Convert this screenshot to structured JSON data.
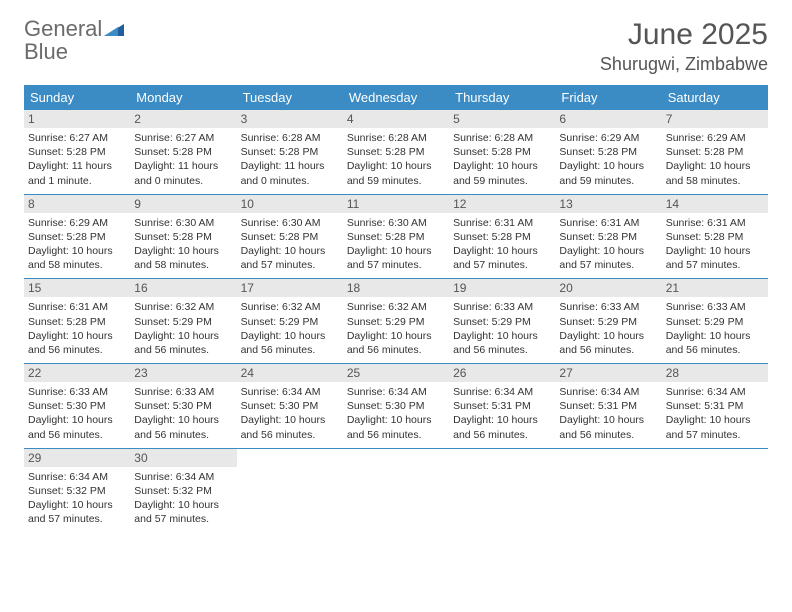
{
  "brand": {
    "word1": "General",
    "word2": "Blue"
  },
  "title": "June 2025",
  "location": "Shurugwi, Zimbabwe",
  "colors": {
    "header_bg": "#3b8bc4",
    "header_text": "#ffffff",
    "daynum_bg": "#e8e8e8",
    "week_border": "#3b8bc4",
    "logo_gray": "#6b6b6b",
    "logo_blue": "#3b8bc4"
  },
  "day_headers": [
    "Sunday",
    "Monday",
    "Tuesday",
    "Wednesday",
    "Thursday",
    "Friday",
    "Saturday"
  ],
  "weeks": [
    [
      {
        "n": "1",
        "sr": "6:27 AM",
        "ss": "5:28 PM",
        "dl": "11 hours and 1 minute."
      },
      {
        "n": "2",
        "sr": "6:27 AM",
        "ss": "5:28 PM",
        "dl": "11 hours and 0 minutes."
      },
      {
        "n": "3",
        "sr": "6:28 AM",
        "ss": "5:28 PM",
        "dl": "11 hours and 0 minutes."
      },
      {
        "n": "4",
        "sr": "6:28 AM",
        "ss": "5:28 PM",
        "dl": "10 hours and 59 minutes."
      },
      {
        "n": "5",
        "sr": "6:28 AM",
        "ss": "5:28 PM",
        "dl": "10 hours and 59 minutes."
      },
      {
        "n": "6",
        "sr": "6:29 AM",
        "ss": "5:28 PM",
        "dl": "10 hours and 59 minutes."
      },
      {
        "n": "7",
        "sr": "6:29 AM",
        "ss": "5:28 PM",
        "dl": "10 hours and 58 minutes."
      }
    ],
    [
      {
        "n": "8",
        "sr": "6:29 AM",
        "ss": "5:28 PM",
        "dl": "10 hours and 58 minutes."
      },
      {
        "n": "9",
        "sr": "6:30 AM",
        "ss": "5:28 PM",
        "dl": "10 hours and 58 minutes."
      },
      {
        "n": "10",
        "sr": "6:30 AM",
        "ss": "5:28 PM",
        "dl": "10 hours and 57 minutes."
      },
      {
        "n": "11",
        "sr": "6:30 AM",
        "ss": "5:28 PM",
        "dl": "10 hours and 57 minutes."
      },
      {
        "n": "12",
        "sr": "6:31 AM",
        "ss": "5:28 PM",
        "dl": "10 hours and 57 minutes."
      },
      {
        "n": "13",
        "sr": "6:31 AM",
        "ss": "5:28 PM",
        "dl": "10 hours and 57 minutes."
      },
      {
        "n": "14",
        "sr": "6:31 AM",
        "ss": "5:28 PM",
        "dl": "10 hours and 57 minutes."
      }
    ],
    [
      {
        "n": "15",
        "sr": "6:31 AM",
        "ss": "5:28 PM",
        "dl": "10 hours and 56 minutes."
      },
      {
        "n": "16",
        "sr": "6:32 AM",
        "ss": "5:29 PM",
        "dl": "10 hours and 56 minutes."
      },
      {
        "n": "17",
        "sr": "6:32 AM",
        "ss": "5:29 PM",
        "dl": "10 hours and 56 minutes."
      },
      {
        "n": "18",
        "sr": "6:32 AM",
        "ss": "5:29 PM",
        "dl": "10 hours and 56 minutes."
      },
      {
        "n": "19",
        "sr": "6:33 AM",
        "ss": "5:29 PM",
        "dl": "10 hours and 56 minutes."
      },
      {
        "n": "20",
        "sr": "6:33 AM",
        "ss": "5:29 PM",
        "dl": "10 hours and 56 minutes."
      },
      {
        "n": "21",
        "sr": "6:33 AM",
        "ss": "5:29 PM",
        "dl": "10 hours and 56 minutes."
      }
    ],
    [
      {
        "n": "22",
        "sr": "6:33 AM",
        "ss": "5:30 PM",
        "dl": "10 hours and 56 minutes."
      },
      {
        "n": "23",
        "sr": "6:33 AM",
        "ss": "5:30 PM",
        "dl": "10 hours and 56 minutes."
      },
      {
        "n": "24",
        "sr": "6:34 AM",
        "ss": "5:30 PM",
        "dl": "10 hours and 56 minutes."
      },
      {
        "n": "25",
        "sr": "6:34 AM",
        "ss": "5:30 PM",
        "dl": "10 hours and 56 minutes."
      },
      {
        "n": "26",
        "sr": "6:34 AM",
        "ss": "5:31 PM",
        "dl": "10 hours and 56 minutes."
      },
      {
        "n": "27",
        "sr": "6:34 AM",
        "ss": "5:31 PM",
        "dl": "10 hours and 56 minutes."
      },
      {
        "n": "28",
        "sr": "6:34 AM",
        "ss": "5:31 PM",
        "dl": "10 hours and 57 minutes."
      }
    ],
    [
      {
        "n": "29",
        "sr": "6:34 AM",
        "ss": "5:32 PM",
        "dl": "10 hours and 57 minutes."
      },
      {
        "n": "30",
        "sr": "6:34 AM",
        "ss": "5:32 PM",
        "dl": "10 hours and 57 minutes."
      },
      null,
      null,
      null,
      null,
      null
    ]
  ],
  "labels": {
    "sunrise": "Sunrise:",
    "sunset": "Sunset:",
    "daylight": "Daylight:"
  }
}
